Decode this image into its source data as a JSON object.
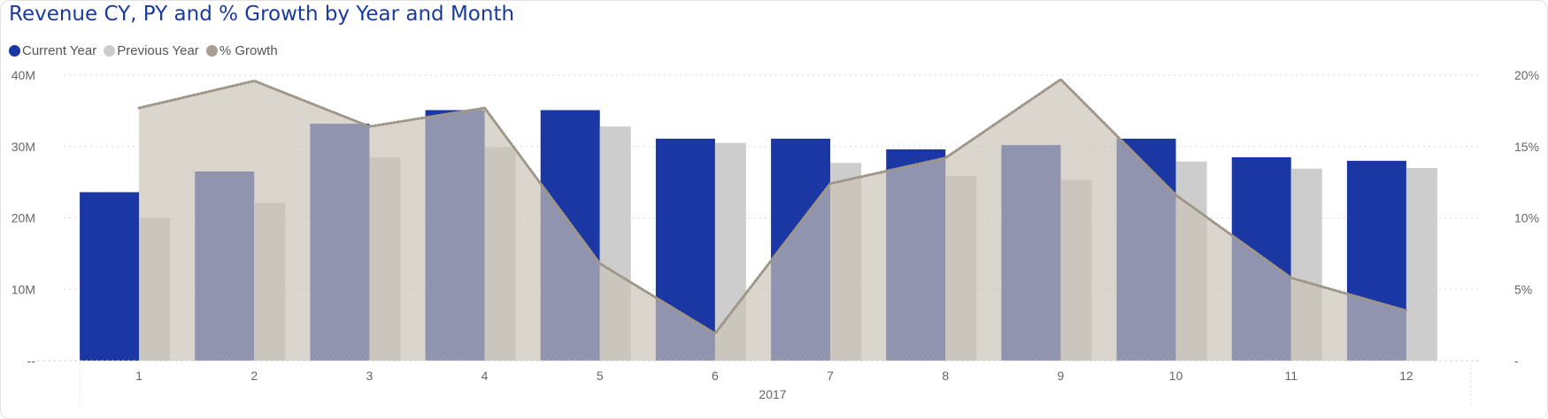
{
  "title": "Revenue CY, PY and % Growth by Year and Month",
  "legend": [
    {
      "label": "Current Year",
      "color": "#1a37a3"
    },
    {
      "label": "Previous Year",
      "color": "#cdcdcd"
    },
    {
      "label": "% Growth",
      "color": "#a89f94"
    }
  ],
  "chart_data": {
    "type": "bar",
    "categories": [
      "1",
      "2",
      "3",
      "4",
      "5",
      "6",
      "7",
      "8",
      "9",
      "10",
      "11",
      "12"
    ],
    "xlabel": "2017",
    "series": [
      {
        "name": "Current Year",
        "kind": "bar",
        "axis": "left",
        "values": [
          23.6,
          26.5,
          33.2,
          35.1,
          35.1,
          31.1,
          31.1,
          29.6,
          30.2,
          31.1,
          28.5,
          28.0
        ]
      },
      {
        "name": "Previous Year",
        "kind": "bar",
        "axis": "left",
        "values": [
          20.0,
          22.1,
          28.5,
          29.9,
          32.8,
          30.5,
          27.7,
          25.9,
          25.3,
          27.9,
          26.9,
          27.0
        ]
      },
      {
        "name": "% Growth",
        "kind": "area",
        "axis": "right",
        "values": [
          17.7,
          19.6,
          16.4,
          17.7,
          6.8,
          1.9,
          12.4,
          14.2,
          19.7,
          11.6,
          5.8,
          3.5
        ]
      }
    ],
    "y_left": {
      "range": [
        0,
        40
      ],
      "ticks": [
        "--",
        "10M",
        "20M",
        "30M",
        "40M"
      ]
    },
    "y_right": {
      "range": [
        0,
        20
      ],
      "ticks": [
        "-",
        "5%",
        "10%",
        "15%",
        "20%"
      ]
    },
    "grid": "horizontal-dotted",
    "legend_position": "top-left",
    "colors": {
      "current_year": "#1a37a3",
      "previous_year": "#cdcdcd",
      "growth_area": "#c9c1b6",
      "growth_line": "#9f968a"
    }
  }
}
